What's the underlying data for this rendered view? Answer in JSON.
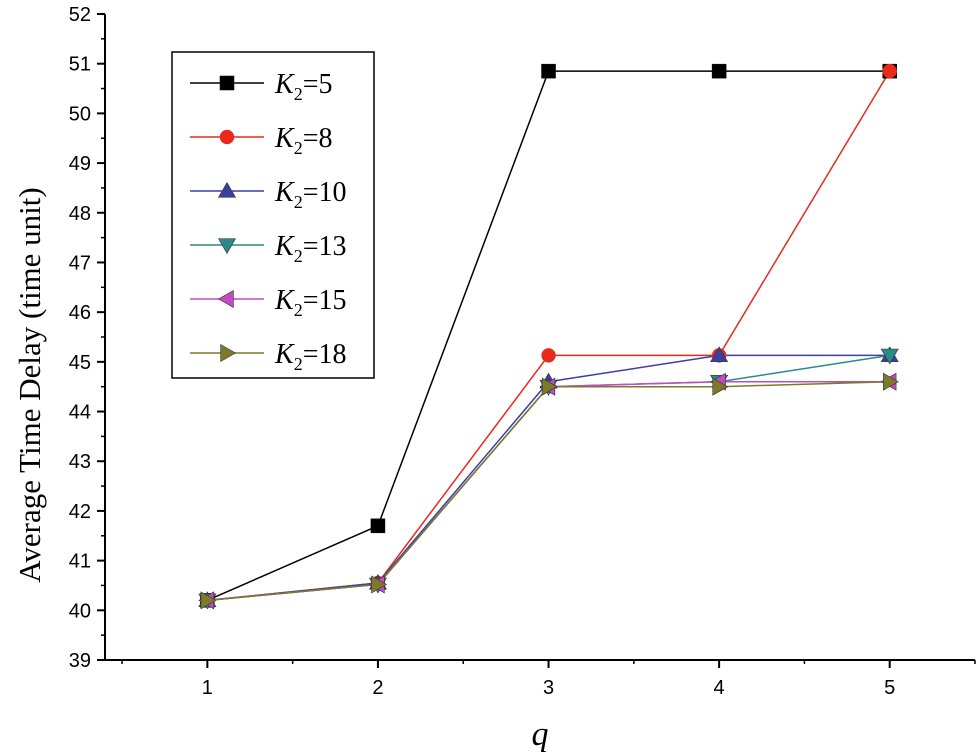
{
  "chart_data": {
    "type": "line",
    "xlabel": "q",
    "ylabel": "Average Time Delay (time unit)",
    "x": [
      1,
      2,
      3,
      4,
      5
    ],
    "xlim": [
      0.4,
      5.5
    ],
    "ylim": [
      39,
      52
    ],
    "xticks": [
      "1",
      "2",
      "3",
      "4",
      "5"
    ],
    "yticks": [
      "39",
      "40",
      "41",
      "42",
      "43",
      "44",
      "45",
      "46",
      "47",
      "48",
      "49",
      "50",
      "51",
      "52"
    ],
    "grid": false,
    "legend_position": "top-left",
    "series": [
      {
        "name": "K2=5",
        "legend_var": "K",
        "legend_sub": "2",
        "legend_val": "=5",
        "color": "#000000",
        "marker": "square",
        "values": [
          40.2,
          41.7,
          50.85,
          50.85,
          50.85
        ]
      },
      {
        "name": "K2=8",
        "legend_var": "K",
        "legend_sub": "2",
        "legend_val": "=8",
        "color": "#e8291c",
        "marker": "circle",
        "values": [
          40.2,
          40.55,
          45.13,
          45.13,
          50.85
        ]
      },
      {
        "name": "K2=10",
        "legend_var": "K",
        "legend_sub": "2",
        "legend_val": "=10",
        "color": "#3a3fa3",
        "marker": "triangle-up",
        "values": [
          40.2,
          40.55,
          44.6,
          45.13,
          45.13
        ]
      },
      {
        "name": "K2=13",
        "legend_var": "K",
        "legend_sub": "2",
        "legend_val": "=13",
        "color": "#2a8a86",
        "marker": "triangle-down",
        "values": [
          40.2,
          40.52,
          44.5,
          44.6,
          45.13
        ]
      },
      {
        "name": "K2=15",
        "legend_var": "K",
        "legend_sub": "2",
        "legend_val": "=15",
        "color": "#c04dbf",
        "marker": "triangle-left",
        "values": [
          40.2,
          40.52,
          44.5,
          44.6,
          44.6
        ]
      },
      {
        "name": "K2=18",
        "legend_var": "K",
        "legend_sub": "2",
        "legend_val": "=18",
        "color": "#7e7a2a",
        "marker": "triangle-right",
        "values": [
          40.2,
          40.52,
          44.5,
          44.5,
          44.6
        ]
      }
    ]
  }
}
